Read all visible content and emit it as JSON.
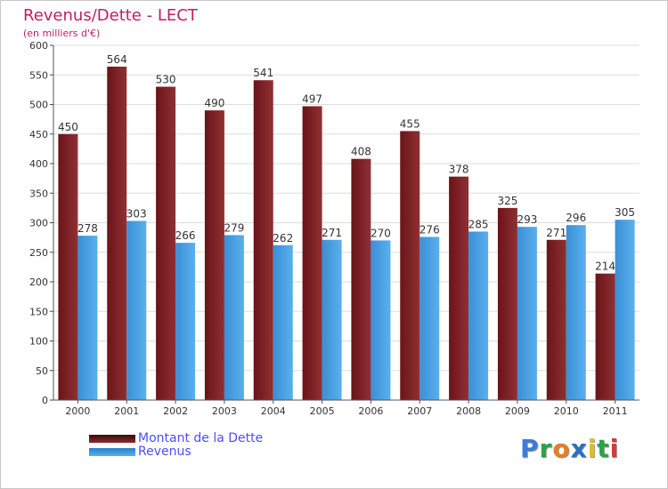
{
  "chart_data": {
    "type": "bar",
    "title": "Revenus/Dette - LECT",
    "subtitle": "(en milliers d'€)",
    "categories": [
      "2000",
      "2001",
      "2002",
      "2003",
      "2004",
      "2005",
      "2006",
      "2007",
      "2008",
      "2009",
      "2010",
      "2011"
    ],
    "series": [
      {
        "name": "Montant de la Dette",
        "color": "#8b2a2e",
        "values": [
          450,
          564,
          530,
          490,
          541,
          497,
          408,
          455,
          378,
          325,
          271,
          214
        ]
      },
      {
        "name": "Revenus",
        "color": "#4ea6e6",
        "values": [
          278,
          303,
          266,
          279,
          262,
          271,
          270,
          276,
          285,
          293,
          296,
          305
        ]
      }
    ],
    "ylim": [
      0,
      600
    ],
    "yticks": [
      0,
      50,
      100,
      150,
      200,
      250,
      300,
      350,
      400,
      450,
      500,
      550,
      600
    ],
    "grid": true,
    "legend_position": "bottom-left"
  },
  "colors": {
    "title": "#c02060",
    "label": "#4d4dff"
  },
  "logo": {
    "letters": [
      "P",
      "r",
      "o",
      "x",
      "i",
      "t",
      "i"
    ],
    "colors": [
      "#3a7dd8",
      "#2ca24a",
      "#e67e22",
      "#2c6fc0",
      "#e0c020",
      "#2ca24a",
      "#d63a3a"
    ]
  }
}
